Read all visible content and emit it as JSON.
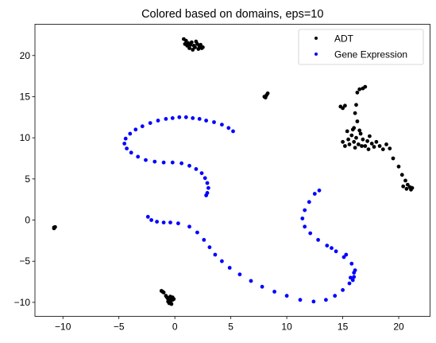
{
  "chart_data": {
    "type": "scatter",
    "title": "Colored based on domains, eps=10",
    "xlabel": "",
    "ylabel": "",
    "xlim": [
      -12.5,
      22.8
    ],
    "ylim": [
      -11.7,
      23.8
    ],
    "xticks": [
      -10,
      -5,
      0,
      5,
      10,
      15,
      20
    ],
    "yticks": [
      -10,
      -5,
      0,
      5,
      10,
      15,
      20
    ],
    "xtick_labels": [
      "−10",
      "−5",
      "0",
      "5",
      "10",
      "15",
      "20"
    ],
    "ytick_labels": [
      "−10",
      "−5",
      "0",
      "5",
      "10",
      "15",
      "20"
    ],
    "grid": false,
    "legend": "top-right",
    "series": [
      {
        "name": "ADT",
        "color": "#000000",
        "points": [
          [
            -10.8,
            -0.9
          ],
          [
            -10.8,
            -1.0
          ],
          [
            -10.7,
            -0.85
          ],
          [
            -1.2,
            -8.6
          ],
          [
            -1.1,
            -8.7
          ],
          [
            -1.0,
            -8.8
          ],
          [
            -0.8,
            -9.2
          ],
          [
            -0.7,
            -9.4
          ],
          [
            -0.6,
            -9.6
          ],
          [
            -0.5,
            -9.8
          ],
          [
            -0.4,
            -10.0
          ],
          [
            -0.3,
            -9.5
          ],
          [
            -0.2,
            -9.7
          ],
          [
            -0.5,
            -10.1
          ],
          [
            -0.3,
            -10.2
          ],
          [
            -0.6,
            -9.9
          ],
          [
            -0.4,
            -9.3
          ],
          [
            -0.2,
            -9.4
          ],
          [
            -0.1,
            -9.6
          ],
          [
            0.8,
            22.0
          ],
          [
            1.0,
            21.8
          ],
          [
            1.2,
            21.5
          ],
          [
            1.4,
            21.3
          ],
          [
            1.5,
            21.6
          ],
          [
            1.7,
            21.2
          ],
          [
            1.8,
            21.0
          ],
          [
            2.0,
            21.4
          ],
          [
            2.2,
            21.1
          ],
          [
            2.4,
            20.9
          ],
          [
            1.1,
            21.2
          ],
          [
            1.3,
            20.9
          ],
          [
            1.9,
            21.7
          ],
          [
            2.1,
            20.8
          ],
          [
            2.3,
            21.3
          ],
          [
            2.5,
            21.0
          ],
          [
            0.9,
            21.4
          ],
          [
            1.6,
            20.7
          ],
          [
            8.0,
            15.0
          ],
          [
            8.2,
            15.2
          ],
          [
            8.3,
            15.4
          ],
          [
            8.1,
            14.9
          ],
          [
            14.8,
            13.8
          ],
          [
            15.0,
            13.6
          ],
          [
            15.2,
            13.9
          ],
          [
            16.5,
            15.9
          ],
          [
            16.8,
            16.0
          ],
          [
            17.0,
            16.2
          ],
          [
            16.3,
            15.5
          ],
          [
            16.2,
            14.0
          ],
          [
            16.1,
            13.0
          ],
          [
            16.3,
            12.0
          ],
          [
            16.0,
            11.2
          ],
          [
            15.0,
            9.5
          ],
          [
            15.2,
            9.0
          ],
          [
            15.5,
            9.8
          ],
          [
            15.8,
            10.3
          ],
          [
            16.0,
            9.5
          ],
          [
            16.2,
            10.0
          ],
          [
            16.4,
            9.2
          ],
          [
            16.6,
            10.5
          ],
          [
            16.8,
            9.8
          ],
          [
            17.0,
            9.0
          ],
          [
            17.2,
            9.6
          ],
          [
            17.4,
            10.2
          ],
          [
            17.6,
            9.3
          ],
          [
            17.8,
            8.9
          ],
          [
            18.0,
            9.5
          ],
          [
            18.3,
            9.0
          ],
          [
            18.6,
            8.6
          ],
          [
            18.9,
            9.2
          ],
          [
            19.2,
            8.7
          ],
          [
            15.6,
            9.2
          ],
          [
            16.1,
            8.8
          ],
          [
            16.7,
            9.0
          ],
          [
            17.3,
            8.6
          ],
          [
            15.4,
            10.8
          ],
          [
            15.9,
            11.0
          ],
          [
            16.5,
            10.9
          ],
          [
            19.5,
            7.5
          ],
          [
            20.0,
            6.5
          ],
          [
            20.3,
            5.5
          ],
          [
            20.6,
            4.8
          ],
          [
            20.8,
            4.3
          ],
          [
            21.0,
            4.0
          ],
          [
            21.2,
            3.9
          ],
          [
            20.4,
            4.1
          ],
          [
            20.7,
            3.8
          ],
          [
            21.1,
            3.7
          ]
        ]
      },
      {
        "name": "Gene Expression",
        "color": "#0000ff",
        "points": [
          [
            5.2,
            10.8
          ],
          [
            4.8,
            11.2
          ],
          [
            4.2,
            11.6
          ],
          [
            3.5,
            11.9
          ],
          [
            2.8,
            12.1
          ],
          [
            2.2,
            12.3
          ],
          [
            1.6,
            12.4
          ],
          [
            1.0,
            12.5
          ],
          [
            0.4,
            12.5
          ],
          [
            -0.2,
            12.4
          ],
          [
            -0.8,
            12.3
          ],
          [
            -1.5,
            12.1
          ],
          [
            -2.2,
            11.8
          ],
          [
            -2.9,
            11.4
          ],
          [
            -3.5,
            11.0
          ],
          [
            -4.0,
            10.5
          ],
          [
            -4.4,
            9.9
          ],
          [
            -4.5,
            9.3
          ],
          [
            -4.3,
            8.7
          ],
          [
            -3.9,
            8.2
          ],
          [
            -3.3,
            7.7
          ],
          [
            -2.6,
            7.3
          ],
          [
            -1.8,
            7.1
          ],
          [
            -1.0,
            7.0
          ],
          [
            -0.2,
            7.0
          ],
          [
            0.6,
            6.9
          ],
          [
            1.3,
            6.6
          ],
          [
            1.9,
            6.2
          ],
          [
            2.4,
            5.7
          ],
          [
            2.7,
            5.1
          ],
          [
            2.9,
            4.5
          ],
          [
            3.0,
            3.9
          ],
          [
            2.9,
            3.3
          ],
          [
            2.8,
            3.0
          ],
          [
            -2.4,
            0.4
          ],
          [
            -2.1,
            0.0
          ],
          [
            -1.6,
            -0.2
          ],
          [
            -1.0,
            -0.3
          ],
          [
            -0.4,
            -0.3
          ],
          [
            0.3,
            -0.4
          ],
          [
            1.3,
            -0.8
          ],
          [
            2.0,
            -1.5
          ],
          [
            2.6,
            -2.4
          ],
          [
            3.1,
            -3.3
          ],
          [
            3.6,
            -4.2
          ],
          [
            4.2,
            -5.0
          ],
          [
            4.9,
            -5.8
          ],
          [
            5.8,
            -6.6
          ],
          [
            6.8,
            -7.4
          ],
          [
            7.8,
            -8.1
          ],
          [
            8.9,
            -8.7
          ],
          [
            10.0,
            -9.2
          ],
          [
            11.2,
            -9.7
          ],
          [
            12.4,
            -9.9
          ],
          [
            13.5,
            -9.7
          ],
          [
            14.3,
            -9.2
          ],
          [
            15.0,
            -8.5
          ],
          [
            15.6,
            -7.7
          ],
          [
            16.0,
            -6.9
          ],
          [
            16.1,
            -6.1
          ],
          [
            15.8,
            -5.3
          ],
          [
            15.1,
            -4.5
          ],
          [
            14.4,
            -3.8
          ],
          [
            13.6,
            -3.1
          ],
          [
            12.8,
            -2.4
          ],
          [
            12.1,
            -1.6
          ],
          [
            11.6,
            -0.8
          ],
          [
            11.4,
            0.2
          ],
          [
            11.6,
            1.2
          ],
          [
            12.0,
            2.2
          ],
          [
            12.5,
            3.2
          ],
          [
            12.9,
            3.6
          ],
          [
            15.3,
            -4.2
          ],
          [
            14.0,
            -3.4
          ],
          [
            15.9,
            -7.3
          ],
          [
            15.7,
            -7.0
          ],
          [
            16.0,
            -6.4
          ]
        ]
      }
    ]
  }
}
